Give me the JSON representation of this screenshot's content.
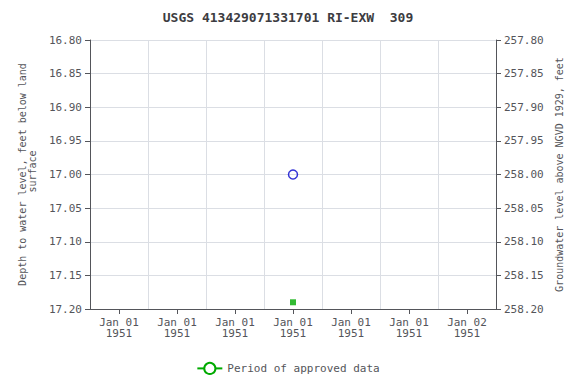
{
  "chart_data": {
    "type": "scatter",
    "title": "USGS 413429071331701 RI-EXW  309",
    "ylabel": "Depth to water level, feet below land\n surface",
    "y2label": "Groundwater level above NGVD 1929, feet",
    "categories": [
      "Jan 01\n1951",
      "Jan 01\n1951",
      "Jan 01\n1951",
      "Jan 01\n1951",
      "Jan 01\n1951",
      "Jan 01\n1951",
      "Jan 02\n1951"
    ],
    "ylim": [
      17.2,
      16.8
    ],
    "yticks": [
      {
        "value": 16.8,
        "label": "16.80"
      },
      {
        "value": 16.85,
        "label": "16.85"
      },
      {
        "value": 16.9,
        "label": "16.90"
      },
      {
        "value": 16.95,
        "label": "16.95"
      },
      {
        "value": 17.0,
        "label": "17.00"
      },
      {
        "value": 17.05,
        "label": "17.05"
      },
      {
        "value": 17.1,
        "label": "17.10"
      },
      {
        "value": 17.15,
        "label": "17.15"
      },
      {
        "value": 17.2,
        "label": "17.20"
      }
    ],
    "y2lim": [
      258.2,
      257.8
    ],
    "y2ticks": [
      {
        "value": 257.8,
        "label": "257.80"
      },
      {
        "value": 257.85,
        "label": "257.85"
      },
      {
        "value": 257.9,
        "label": "257.90"
      },
      {
        "value": 257.95,
        "label": "257.95"
      },
      {
        "value": 258.0,
        "label": "258.00"
      },
      {
        "value": 258.05,
        "label": "258.05"
      },
      {
        "value": 258.1,
        "label": "258.10"
      },
      {
        "value": 258.15,
        "label": "258.15"
      },
      {
        "value": 258.2,
        "label": "258.20"
      }
    ],
    "grid": true,
    "legend": "bottom",
    "series": [
      {
        "type": "scatter",
        "color": "#0000cc",
        "marker": "open_circle",
        "values": [
          null,
          null,
          null,
          17.0,
          null,
          null,
          null
        ]
      },
      {
        "type": "scatter",
        "color": "#00aa00",
        "marker": "square",
        "values": [
          null,
          null,
          null,
          17.19,
          null,
          null,
          null
        ]
      },
      {
        "name": "Period of approved data",
        "type": "line",
        "color": "#00aa00",
        "values": [
          null,
          null,
          null,
          null,
          null,
          null,
          null
        ]
      }
    ]
  }
}
